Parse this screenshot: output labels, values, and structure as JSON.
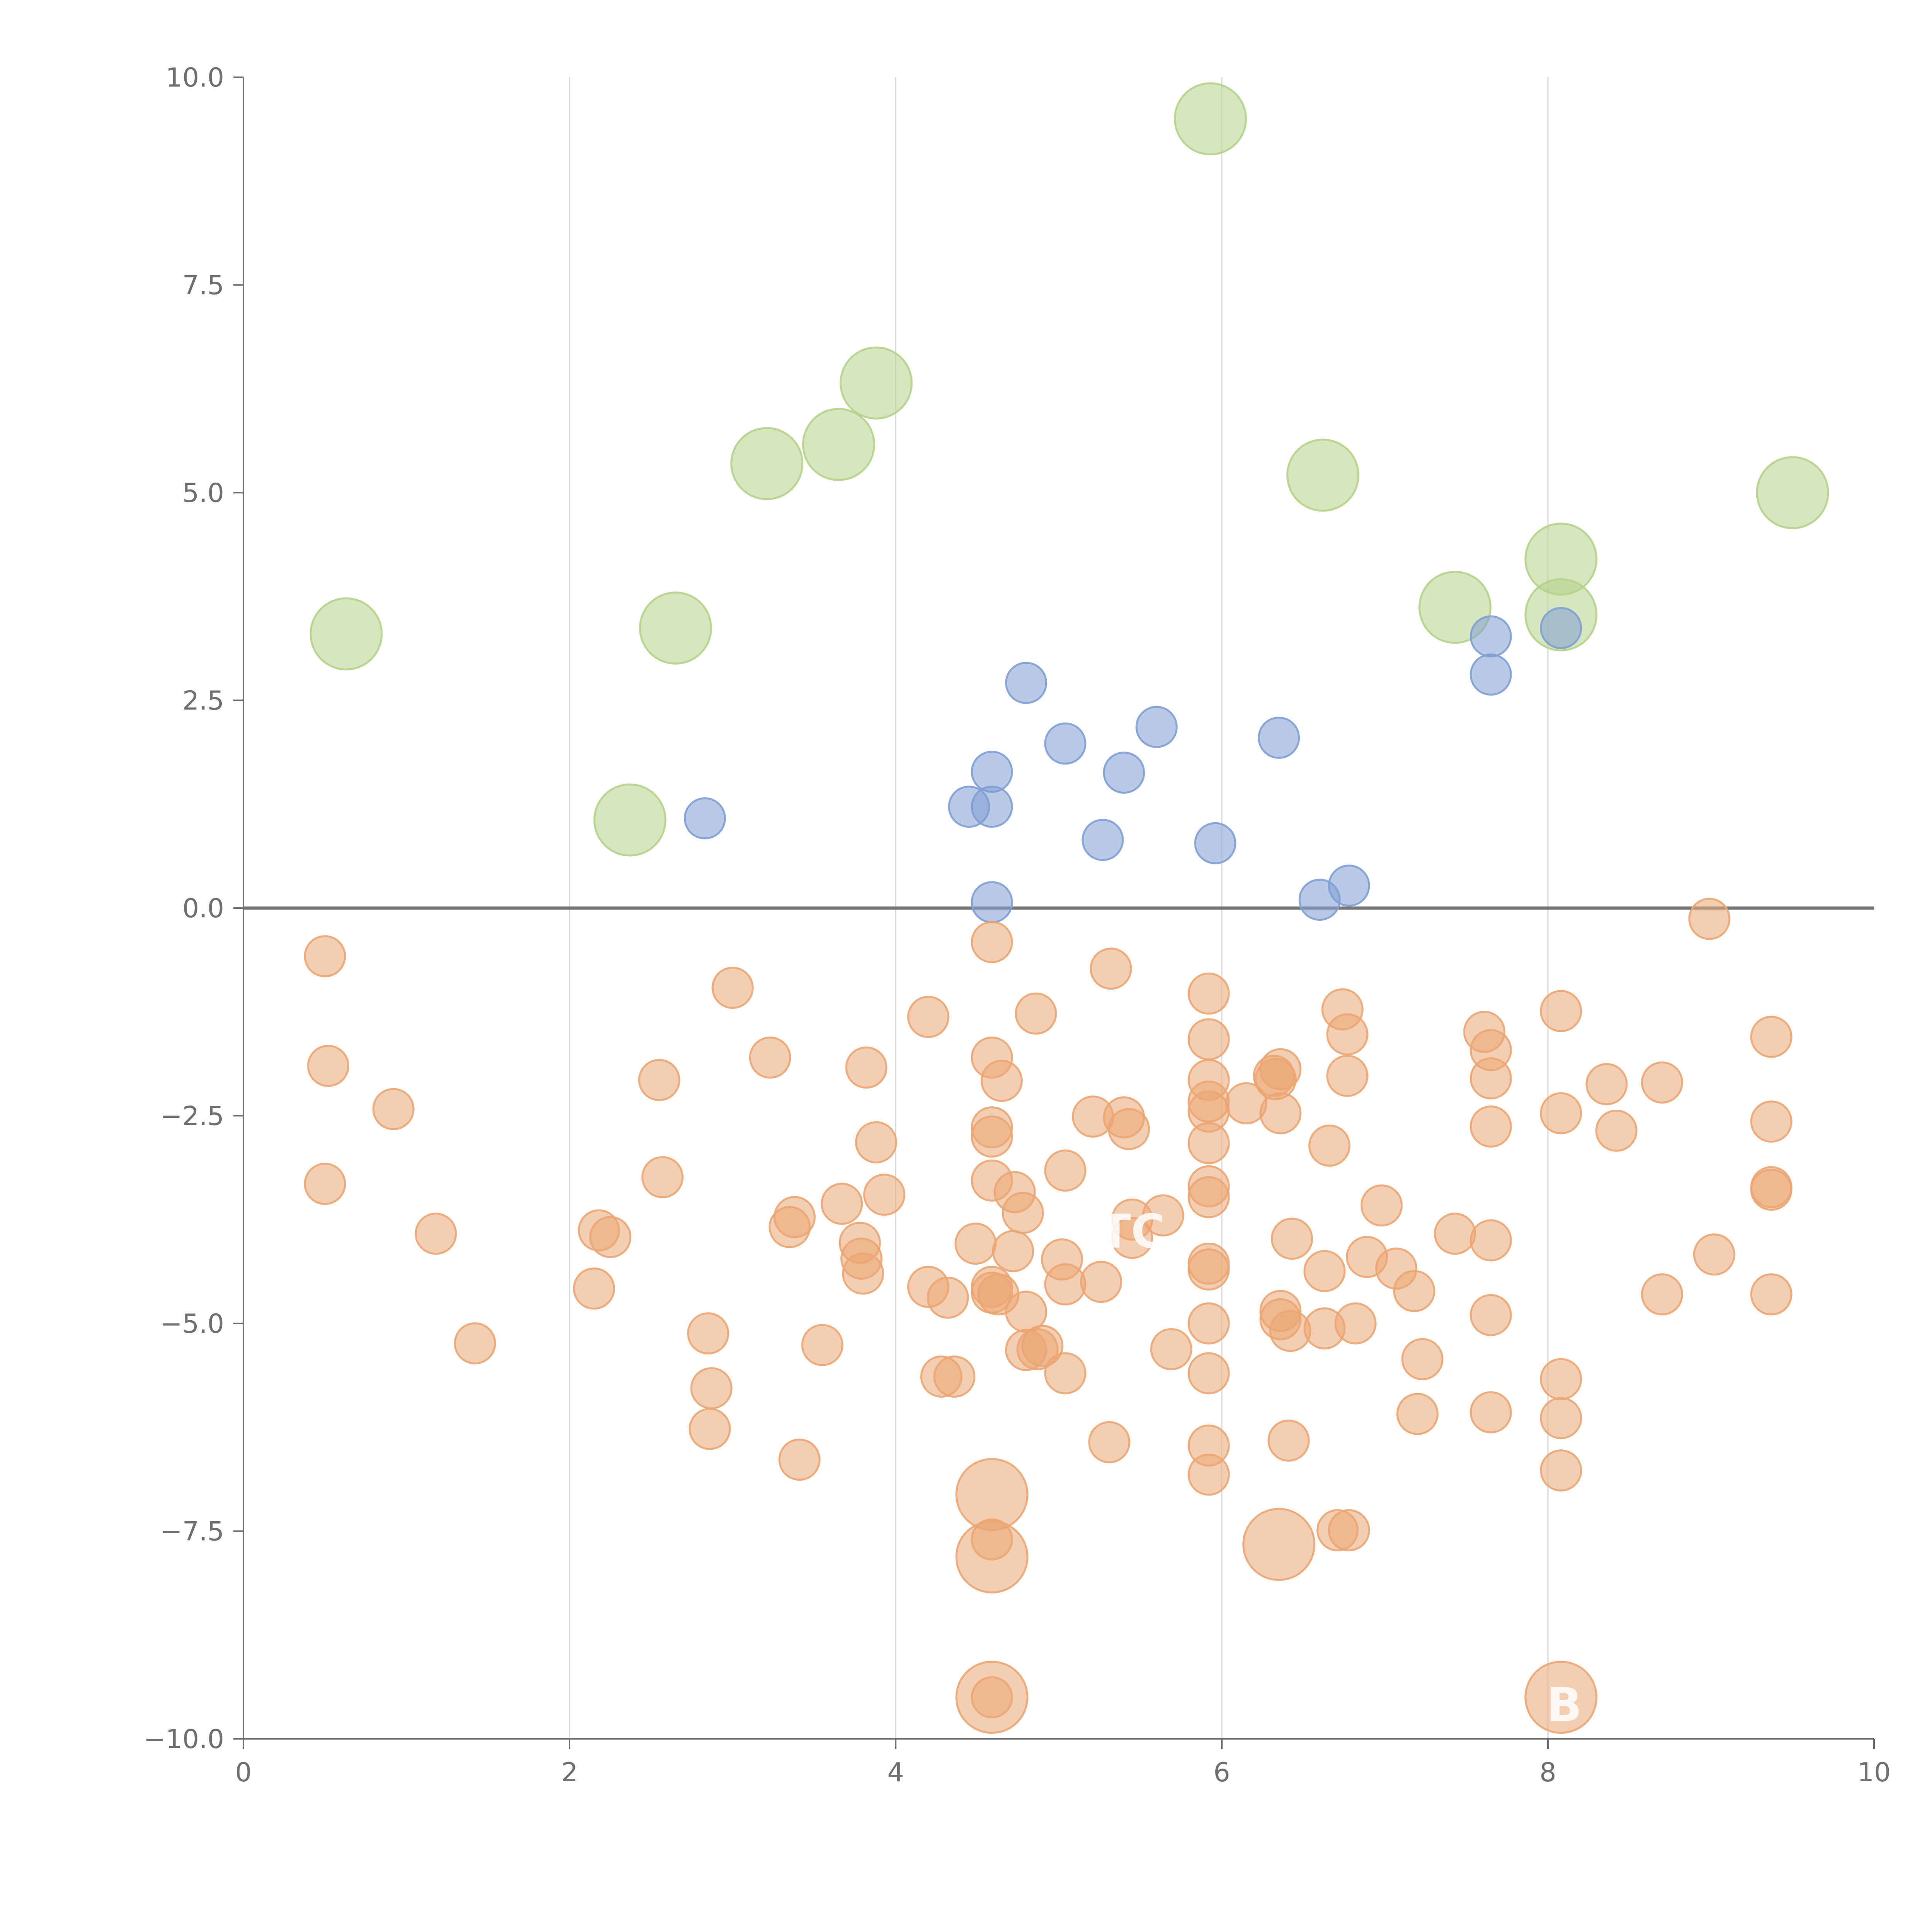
{
  "chart_data": {
    "type": "scatter",
    "title": "",
    "xlabel": "",
    "ylabel": "",
    "xlim": [
      0,
      10
    ],
    "ylim": [
      -10,
      10
    ],
    "x_ticks": [
      "0",
      "2",
      "4",
      "6",
      "8",
      "10"
    ],
    "y_ticks": [
      "10.0",
      "7.5",
      "5.0",
      "2.5",
      "0.0",
      "−2.5",
      "−5.0",
      "−7.5",
      "−10.0"
    ],
    "x_tick_values": [
      0,
      2,
      4,
      6,
      8,
      10
    ],
    "y_tick_values": [
      10,
      7.5,
      5,
      2.5,
      0,
      -2.5,
      -5,
      -7.5,
      -10
    ],
    "grid": "vertical gridlines at x = 2, 4, 6, 8",
    "reference_line_y": 0,
    "legend": "none",
    "colors": {
      "green": "#b5d28a",
      "blue": "#7f9fd4",
      "orange": "#eba572"
    },
    "annotations": [
      {
        "text": "TC",
        "x": 5.45,
        "y": -3.9
      },
      {
        "text": "B",
        "x": 8.1,
        "y": -9.6
      }
    ],
    "series": [
      {
        "color_key": "green",
        "size": "large",
        "points": [
          [
            5.93,
            9.5
          ],
          [
            3.88,
            6.32
          ],
          [
            3.65,
            5.58
          ],
          [
            3.21,
            5.35
          ],
          [
            6.62,
            5.21
          ],
          [
            9.5,
            5.0
          ],
          [
            8.08,
            4.2
          ],
          [
            7.43,
            3.62
          ],
          [
            8.08,
            3.53
          ],
          [
            2.65,
            3.37
          ],
          [
            0.63,
            3.3
          ],
          [
            2.37,
            1.06
          ]
        ]
      },
      {
        "color_key": "blue",
        "size": "small",
        "points": [
          [
            4.8,
            2.71
          ],
          [
            5.04,
            1.98
          ],
          [
            5.6,
            2.18
          ],
          [
            6.35,
            2.05
          ],
          [
            4.59,
            1.64
          ],
          [
            5.4,
            1.63
          ],
          [
            4.45,
            1.22
          ],
          [
            4.59,
            1.22
          ],
          [
            2.83,
            1.08
          ],
          [
            5.27,
            0.82
          ],
          [
            5.96,
            0.78
          ],
          [
            6.78,
            0.27
          ],
          [
            6.6,
            0.1
          ],
          [
            4.59,
            0.07
          ],
          [
            7.65,
            3.27
          ],
          [
            7.65,
            2.81
          ],
          [
            8.08,
            3.37
          ]
        ]
      },
      {
        "color_key": "orange",
        "size": "small",
        "points": [
          [
            0.5,
            -0.58
          ],
          [
            0.52,
            -1.9
          ],
          [
            0.92,
            -2.42
          ],
          [
            0.5,
            -3.32
          ],
          [
            1.18,
            -3.92
          ],
          [
            1.42,
            -5.24
          ],
          [
            2.18,
            -3.88
          ],
          [
            2.25,
            -3.96
          ],
          [
            2.15,
            -4.58
          ],
          [
            2.55,
            -2.07
          ],
          [
            2.57,
            -3.24
          ],
          [
            3.0,
            -0.96
          ],
          [
            3.23,
            -1.8
          ],
          [
            2.85,
            -5.12
          ],
          [
            2.87,
            -5.78
          ],
          [
            2.86,
            -6.27
          ],
          [
            3.38,
            -3.72
          ],
          [
            3.35,
            -3.84
          ],
          [
            3.41,
            -6.64
          ],
          [
            3.55,
            -5.26
          ],
          [
            3.67,
            -3.56
          ],
          [
            3.78,
            -4.03
          ],
          [
            3.79,
            -4.22
          ],
          [
            3.8,
            -4.4
          ],
          [
            3.82,
            -1.92
          ],
          [
            3.88,
            -2.82
          ],
          [
            3.93,
            -3.45
          ],
          [
            4.2,
            -1.31
          ],
          [
            4.2,
            -4.56
          ],
          [
            4.32,
            -4.69
          ],
          [
            4.28,
            -5.64
          ],
          [
            4.36,
            -5.64
          ],
          [
            4.49,
            -4.04
          ],
          [
            4.59,
            -0.41
          ],
          [
            4.59,
            -1.8
          ],
          [
            4.59,
            -2.64
          ],
          [
            4.59,
            -2.75
          ],
          [
            4.59,
            -3.28
          ],
          [
            4.59,
            -4.56
          ],
          [
            4.59,
            -4.63
          ],
          [
            4.63,
            -4.65
          ],
          [
            4.65,
            -2.08
          ],
          [
            4.73,
            -3.42
          ],
          [
            4.72,
            -4.13
          ],
          [
            4.78,
            -3.67
          ],
          [
            4.8,
            -4.86
          ],
          [
            4.8,
            -5.32
          ],
          [
            4.86,
            -1.27
          ],
          [
            4.87,
            -5.31
          ],
          [
            4.9,
            -5.27
          ],
          [
            5.02,
            -4.23
          ],
          [
            5.04,
            -4.53
          ],
          [
            5.04,
            -5.6
          ],
          [
            5.04,
            -3.16
          ],
          [
            5.21,
            -2.51
          ],
          [
            5.26,
            -4.5
          ],
          [
            5.32,
            -0.73
          ],
          [
            5.31,
            -6.43
          ],
          [
            5.4,
            -2.52
          ],
          [
            5.43,
            -2.66
          ],
          [
            5.45,
            -3.75
          ],
          [
            5.45,
            -3.97
          ],
          [
            5.64,
            -3.7
          ],
          [
            5.69,
            -5.31
          ],
          [
            5.92,
            -1.03
          ],
          [
            5.92,
            -1.58
          ],
          [
            5.92,
            -2.07
          ],
          [
            5.92,
            -2.33
          ],
          [
            5.92,
            -2.45
          ],
          [
            5.92,
            -2.83
          ],
          [
            5.92,
            -3.35
          ],
          [
            5.92,
            -3.48
          ],
          [
            5.92,
            -4.28
          ],
          [
            5.92,
            -4.35
          ],
          [
            5.92,
            -5.0
          ],
          [
            5.92,
            -5.6
          ],
          [
            5.92,
            -6.47
          ],
          [
            5.92,
            -6.82
          ],
          [
            6.15,
            -2.35
          ],
          [
            6.32,
            -2.02
          ],
          [
            6.36,
            -1.94
          ],
          [
            6.33,
            -2.06
          ],
          [
            6.36,
            -2.47
          ],
          [
            6.36,
            -4.85
          ],
          [
            6.36,
            -4.95
          ],
          [
            6.43,
            -3.98
          ],
          [
            6.42,
            -5.09
          ],
          [
            6.41,
            -6.41
          ],
          [
            6.63,
            -4.37
          ],
          [
            6.63,
            -5.06
          ],
          [
            6.66,
            -2.86
          ],
          [
            6.74,
            -1.22
          ],
          [
            6.77,
            -1.52
          ],
          [
            6.77,
            -2.02
          ],
          [
            6.71,
            -7.49
          ],
          [
            6.78,
            -7.49
          ],
          [
            6.82,
            -5.0
          ],
          [
            6.89,
            -4.2
          ],
          [
            6.98,
            -3.58
          ],
          [
            7.07,
            -4.34
          ],
          [
            7.18,
            -4.61
          ],
          [
            7.2,
            -6.09
          ],
          [
            7.23,
            -5.43
          ],
          [
            7.43,
            -3.92
          ],
          [
            7.61,
            -1.49
          ],
          [
            7.65,
            -1.71
          ],
          [
            7.65,
            -2.05
          ],
          [
            7.65,
            -2.63
          ],
          [
            7.65,
            -4.0
          ],
          [
            7.65,
            -4.9
          ],
          [
            7.65,
            -6.07
          ],
          [
            8.08,
            -1.24
          ],
          [
            8.08,
            -2.47
          ],
          [
            8.08,
            -5.67
          ],
          [
            8.08,
            -6.14
          ],
          [
            8.08,
            -6.77
          ],
          [
            8.36,
            -2.12
          ],
          [
            8.42,
            -2.68
          ],
          [
            8.7,
            -2.1
          ],
          [
            8.7,
            -4.65
          ],
          [
            8.99,
            -0.13
          ],
          [
            9.02,
            -4.17
          ],
          [
            9.37,
            -1.55
          ],
          [
            9.37,
            -2.57
          ],
          [
            9.37,
            -3.36
          ],
          [
            9.37,
            -3.39
          ],
          [
            9.37,
            -4.65
          ],
          [
            4.59,
            -7.6
          ],
          [
            4.59,
            -9.5
          ]
        ]
      },
      {
        "color_key": "orange",
        "size": "large",
        "points": [
          [
            4.59,
            -7.06
          ],
          [
            4.59,
            -7.81
          ],
          [
            6.35,
            -7.66
          ],
          [
            4.59,
            -9.5
          ],
          [
            8.08,
            -9.5
          ]
        ]
      }
    ]
  }
}
